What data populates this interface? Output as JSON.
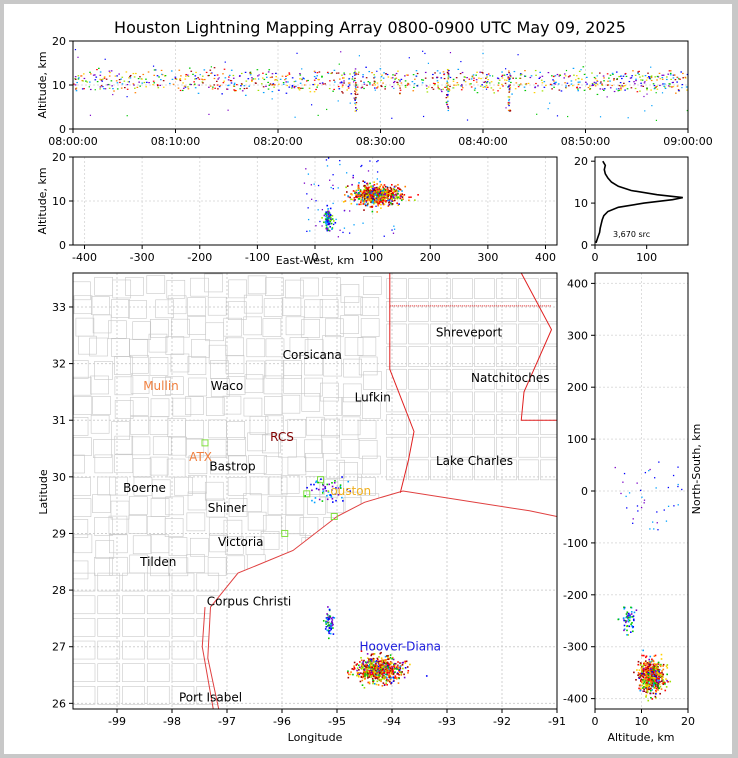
{
  "title": "Houston Lightning Mapping Array 0800-0900 UTC May 09, 2025",
  "chart_data": [
    {
      "type": "scatter",
      "panel": "altitude-time",
      "ylabel": "Altitude, km",
      "x_ticks": [
        "08:00:00",
        "08:10:00",
        "08:20:00",
        "08:30:00",
        "08:40:00",
        "08:50:00",
        "09:00:00"
      ],
      "xlim_minutes": [
        0,
        60
      ],
      "ylim": [
        0,
        20
      ],
      "y_ticks": [
        0,
        10,
        20
      ],
      "grid": true,
      "dense_columns_minutes": [
        27.5,
        36.5,
        42.5
      ],
      "source_altitude_band_km": [
        9,
        13
      ]
    },
    {
      "type": "scatter",
      "panel": "east-west-altitude",
      "xlabel": "East-West, km",
      "ylabel": "Altitude, km",
      "xlim": [
        -420,
        420
      ],
      "x_ticks": [
        -400,
        -300,
        -200,
        -100,
        0,
        100,
        200,
        300,
        400
      ],
      "ylim": [
        0,
        20
      ],
      "y_ticks": [
        0,
        10,
        20
      ],
      "grid": true,
      "clusters": [
        {
          "x_center": 105,
          "x_spread": 45,
          "alt_center": 11.5,
          "alt_spread": 2.5,
          "density": "high"
        },
        {
          "x_center": 22,
          "x_spread": 8,
          "alt_center": 6,
          "alt_spread": 3,
          "density": "medium"
        }
      ]
    },
    {
      "type": "line",
      "panel": "altitude-histogram",
      "xlim": [
        0,
        180
      ],
      "x_ticks": [
        0,
        100
      ],
      "ylim": [
        0,
        21
      ],
      "y_ticks": [
        0,
        10,
        20
      ],
      "annotation": "3,670 src",
      "profile": [
        {
          "alt": 0.5,
          "count": 2
        },
        {
          "alt": 2,
          "count": 6
        },
        {
          "alt": 3,
          "count": 9
        },
        {
          "alt": 4,
          "count": 10
        },
        {
          "alt": 5,
          "count": 12
        },
        {
          "alt": 6,
          "count": 14
        },
        {
          "alt": 7,
          "count": 17
        },
        {
          "alt": 8,
          "count": 25
        },
        {
          "alt": 9,
          "count": 45
        },
        {
          "alt": 10,
          "count": 95
        },
        {
          "alt": 10.8,
          "count": 150
        },
        {
          "alt": 11.3,
          "count": 170
        },
        {
          "alt": 12,
          "count": 120
        },
        {
          "alt": 13,
          "count": 70
        },
        {
          "alt": 14,
          "count": 45
        },
        {
          "alt": 15,
          "count": 32
        },
        {
          "alt": 16,
          "count": 25
        },
        {
          "alt": 17,
          "count": 20
        },
        {
          "alt": 18,
          "count": 18
        },
        {
          "alt": 19,
          "count": 20
        },
        {
          "alt": 20,
          "count": 15
        }
      ]
    },
    {
      "type": "scatter",
      "panel": "plan-view-map",
      "xlabel": "Longitude",
      "ylabel": "Latitude",
      "xlim": [
        -99.8,
        -91
      ],
      "x_ticks": [
        -99,
        -98,
        -97,
        -96,
        -95,
        -94,
        -93,
        -92,
        -91
      ],
      "ylim": [
        25.9,
        33.6
      ],
      "y_ticks": [
        26,
        27,
        28,
        29,
        30,
        31,
        32,
        33
      ],
      "grid": true,
      "clusters": [
        {
          "lon": -94.25,
          "lat": 26.6,
          "spread_lon": 0.45,
          "spread_lat": 0.25,
          "density": "high"
        },
        {
          "lon": -95.15,
          "lat": 27.45,
          "spread_lon": 0.08,
          "spread_lat": 0.25,
          "density": "medium"
        },
        {
          "lon": -95.2,
          "lat": 29.8,
          "spread_lon": 0.4,
          "spread_lat": 0.3,
          "density": "low"
        }
      ],
      "cities": [
        {
          "name": "Shreveport",
          "lon": -92.6,
          "lat": 32.55,
          "color": "#000000"
        },
        {
          "name": "Corsicana",
          "lon": -95.45,
          "lat": 32.15,
          "color": "#000000"
        },
        {
          "name": "Natchitoches",
          "lon": -91.85,
          "lat": 31.75,
          "color": "#000000"
        },
        {
          "name": "Mullin",
          "lon": -98.2,
          "lat": 31.6,
          "color": "#f08040"
        },
        {
          "name": "Waco",
          "lon": -97.0,
          "lat": 31.6,
          "color": "#000000"
        },
        {
          "name": "Lufkin",
          "lon": -94.35,
          "lat": 31.4,
          "color": "#000000"
        },
        {
          "name": "RCS",
          "lon": -96.0,
          "lat": 30.7,
          "color": "#800000"
        },
        {
          "name": "ATX",
          "lon": -97.48,
          "lat": 30.35,
          "color": "#f08040"
        },
        {
          "name": "Bastrop",
          "lon": -96.9,
          "lat": 30.18,
          "color": "#000000"
        },
        {
          "name": "Lake Charles",
          "lon": -92.5,
          "lat": 30.28,
          "color": "#000000"
        },
        {
          "name": "Boerne",
          "lon": -98.5,
          "lat": 29.8,
          "color": "#000000"
        },
        {
          "name": "ouston",
          "lon": -94.75,
          "lat": 29.75,
          "color": "#f0b020"
        },
        {
          "name": "Shiner",
          "lon": -97.0,
          "lat": 29.45,
          "color": "#000000"
        },
        {
          "name": "Victoria",
          "lon": -96.75,
          "lat": 28.85,
          "color": "#000000"
        },
        {
          "name": "Tilden",
          "lon": -98.25,
          "lat": 28.5,
          "color": "#000000"
        },
        {
          "name": "Corpus Christi",
          "lon": -96.6,
          "lat": 27.8,
          "color": "#000000"
        },
        {
          "name": "Hoover-Diana",
          "lon": -93.85,
          "lat": 27.0,
          "color": "#1a1adc"
        },
        {
          "name": "Port Isabel",
          "lon": -97.3,
          "lat": 26.1,
          "color": "#000000"
        }
      ]
    },
    {
      "type": "scatter",
      "panel": "north-south-altitude",
      "xlabel": "Altitude, km",
      "ylabel": "North-South, km",
      "xlim": [
        0,
        20
      ],
      "x_ticks": [
        0,
        10,
        20
      ],
      "ylim": [
        -420,
        420
      ],
      "y_ticks": [
        -400,
        -300,
        -200,
        -100,
        0,
        100,
        200,
        300,
        400
      ],
      "grid": true,
      "clusters": [
        {
          "alt_center": 12,
          "alt_spread": 3,
          "ns_center": -355,
          "ns_spread": 35,
          "density": "high"
        },
        {
          "alt_center": 7,
          "alt_spread": 2,
          "ns_center": -250,
          "ns_spread": 35,
          "density": "medium"
        }
      ]
    }
  ]
}
